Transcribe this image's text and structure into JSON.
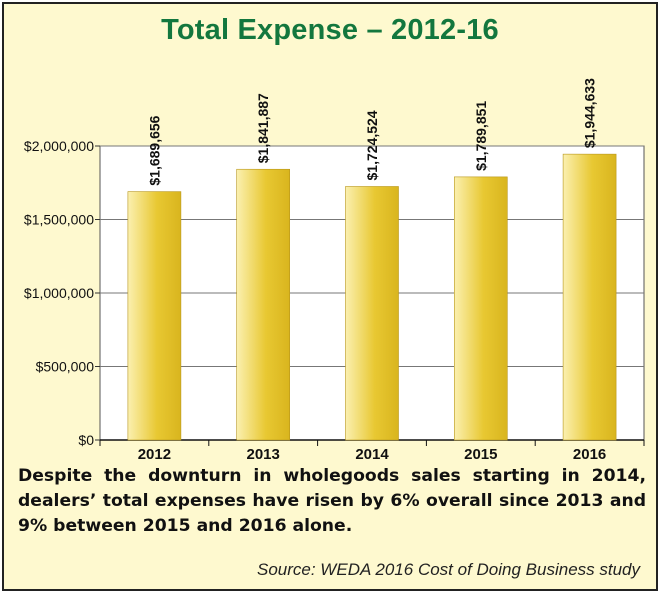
{
  "chart_data": {
    "type": "bar",
    "title": "Total Expense – 2012-16",
    "categories": [
      "2012",
      "2013",
      "2014",
      "2015",
      "2016"
    ],
    "values": [
      1689656,
      1841887,
      1724524,
      1789851,
      1944633
    ],
    "value_labels": [
      "$1,689,656",
      "$1,841,887",
      "$1,724,524",
      "$1,789,851",
      "$1,944,633"
    ],
    "ylim": [
      0,
      2000000
    ],
    "yticks": [
      0,
      500000,
      1000000,
      1500000,
      2000000
    ],
    "ytick_labels": [
      "$0",
      "$500,000",
      "$1,000,000",
      "$1,500,000",
      "$2,000,000"
    ],
    "grid": true,
    "bar_color": "#e8c832",
    "bar_highlight": "#fbf0b0",
    "title_color": "#13773e",
    "background": "#fef9cf"
  },
  "caption": "Despite the downturn in wholegoods sales starting in 2014, dealers’ total expenses have risen by 6% overall since 2013 and 9% between 2015 and 2016 alone.",
  "source": "Source: WEDA 2016 Cost of Doing Business study"
}
